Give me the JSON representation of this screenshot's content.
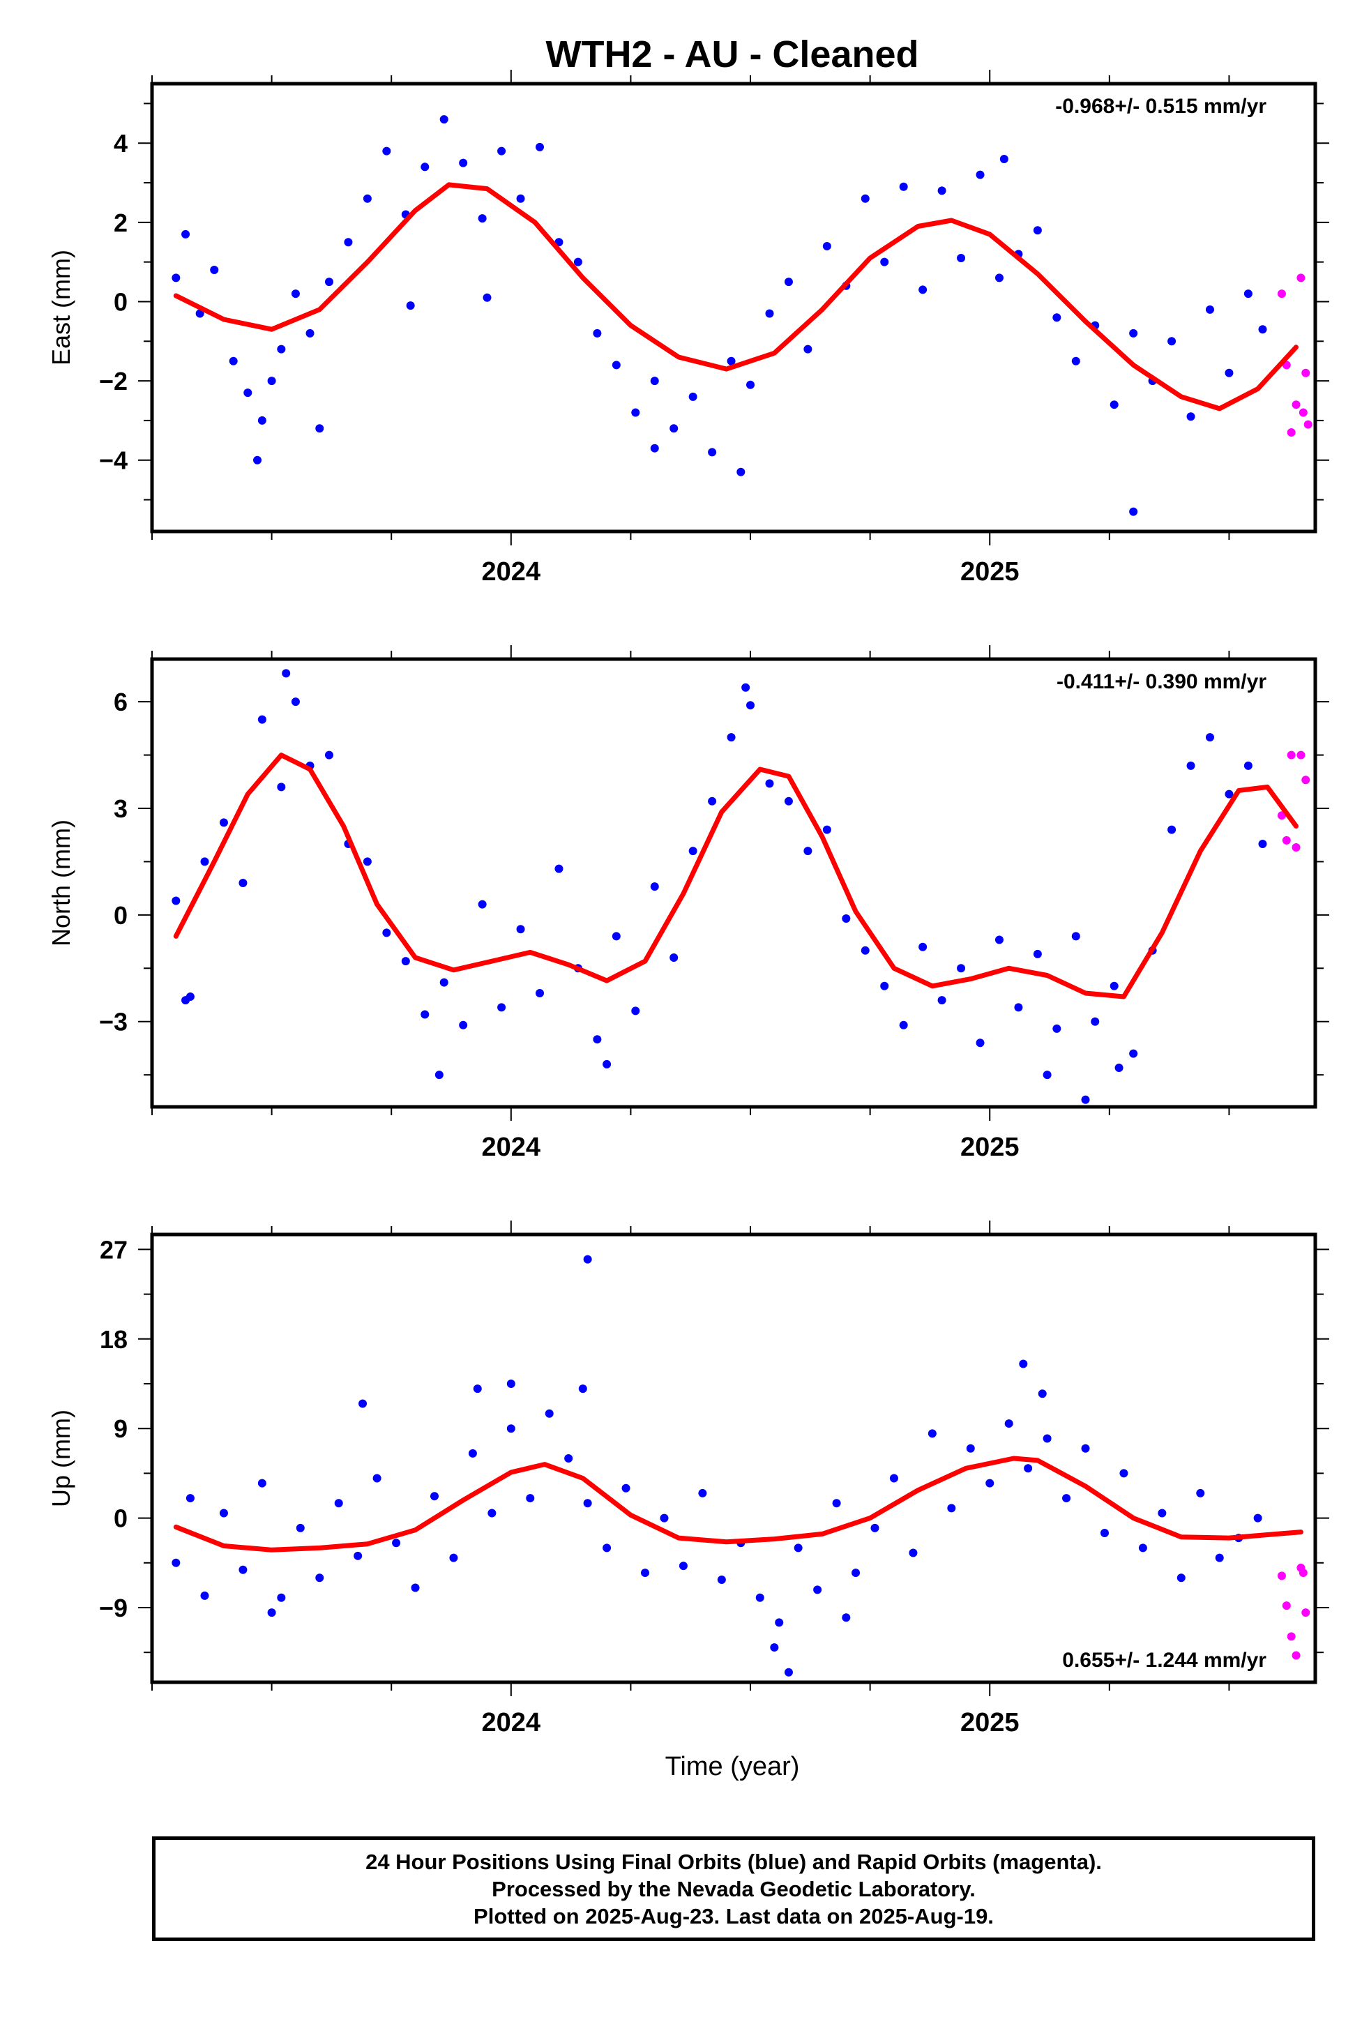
{
  "title": "WTH2  - AU - Cleaned",
  "xlabel": "Time (year)",
  "footer": {
    "line1": "24 Hour Positions Using Final Orbits (blue) and Rapid Orbits (magenta).",
    "line2": "Processed by the Nevada Geodetic Laboratory.",
    "line3": "Plotted on 2025-Aug-23. Last data on 2025-Aug-19."
  },
  "colors": {
    "final": "#0000ff",
    "rapid": "#ff00ff",
    "fit": "#ff0000"
  },
  "chart_data": [
    {
      "type": "scatter",
      "ylabel": "East (mm)",
      "rate_label": "-0.968+/- 0.515 mm/yr",
      "rate_position": "top-right",
      "xlim": [
        2023.25,
        2025.68
      ],
      "ylim": [
        -5.8,
        5.5
      ],
      "yticks": [
        -4,
        -2,
        0,
        2,
        4
      ],
      "xticks": [
        2024,
        2025
      ],
      "fit_curve": {
        "x": [
          2023.3,
          2023.4,
          2023.5,
          2023.6,
          2023.7,
          2023.8,
          2023.87,
          2023.95,
          2024.05,
          2024.15,
          2024.25,
          2024.35,
          2024.45,
          2024.55,
          2024.65,
          2024.75,
          2024.85,
          2024.92,
          2025.0,
          2025.1,
          2025.2,
          2025.3,
          2025.4,
          2025.48,
          2025.56,
          2025.64
        ],
        "y": [
          0.15,
          -0.45,
          -0.7,
          -0.2,
          1.0,
          2.3,
          2.95,
          2.85,
          2.0,
          0.6,
          -0.6,
          -1.4,
          -1.7,
          -1.3,
          -0.2,
          1.1,
          1.9,
          2.05,
          1.7,
          0.7,
          -0.5,
          -1.6,
          -2.4,
          -2.7,
          -2.2,
          -1.15
        ]
      },
      "final_points": {
        "x": [
          2023.3,
          2023.32,
          2023.35,
          2023.38,
          2023.42,
          2023.45,
          2023.48,
          2023.5,
          2023.52,
          2023.55,
          2023.58,
          2023.62,
          2023.66,
          2023.7,
          2023.74,
          2023.78,
          2023.82,
          2023.86,
          2023.9,
          2023.94,
          2023.98,
          2024.02,
          2024.06,
          2024.1,
          2024.14,
          2024.18,
          2024.22,
          2024.26,
          2024.3,
          2024.34,
          2024.38,
          2024.42,
          2024.46,
          2024.5,
          2024.54,
          2024.58,
          2024.62,
          2024.66,
          2024.7,
          2024.74,
          2024.78,
          2024.82,
          2024.86,
          2024.9,
          2024.94,
          2024.98,
          2025.02,
          2025.06,
          2025.1,
          2025.14,
          2025.18,
          2025.22,
          2025.26,
          2025.3,
          2025.34,
          2025.38,
          2025.42,
          2025.46,
          2025.5,
          2025.54,
          2025.57,
          2023.47,
          2023.79,
          2024.3,
          2024.48,
          2025.03,
          2025.3,
          2023.6,
          2023.95
        ],
        "y": [
          0.6,
          1.7,
          -0.3,
          0.8,
          -1.5,
          -2.3,
          -3.0,
          -2.0,
          -1.2,
          0.2,
          -0.8,
          0.5,
          1.5,
          2.6,
          3.8,
          2.2,
          3.4,
          4.6,
          3.5,
          2.1,
          3.8,
          2.6,
          3.9,
          1.5,
          1.0,
          -0.8,
          -1.6,
          -2.8,
          -2.0,
          -3.2,
          -2.4,
          -3.8,
          -1.5,
          -2.1,
          -0.3,
          0.5,
          -1.2,
          1.4,
          0.4,
          2.6,
          1.0,
          2.9,
          0.3,
          2.8,
          1.1,
          3.2,
          0.6,
          1.2,
          1.8,
          -0.4,
          -1.5,
          -0.6,
          -2.6,
          -0.8,
          -2.0,
          -1.0,
          -2.9,
          -0.2,
          -1.8,
          0.2,
          -0.7,
          -4.0,
          -0.1,
          -3.7,
          -4.3,
          3.6,
          -5.3,
          -3.2,
          0.1
        ]
      },
      "rapid_points": {
        "x": [
          2025.61,
          2025.62,
          2025.63,
          2025.64,
          2025.65,
          2025.655,
          2025.66,
          2025.665
        ],
        "y": [
          0.2,
          -1.6,
          -3.3,
          -2.6,
          0.6,
          -2.8,
          -1.8,
          -3.1
        ]
      }
    },
    {
      "type": "scatter",
      "ylabel": "North (mm)",
      "rate_label": "-0.411+/- 0.390 mm/yr",
      "rate_position": "top-right",
      "xlim": [
        2023.25,
        2025.68
      ],
      "ylim": [
        -5.4,
        7.2
      ],
      "yticks": [
        -3,
        0,
        3,
        6
      ],
      "xticks": [
        2024,
        2025
      ],
      "fit_curve": {
        "x": [
          2023.3,
          2023.38,
          2023.45,
          2023.52,
          2023.58,
          2023.65,
          2023.72,
          2023.8,
          2023.88,
          2023.96,
          2024.04,
          2024.12,
          2024.2,
          2024.28,
          2024.36,
          2024.44,
          2024.52,
          2024.58,
          2024.65,
          2024.72,
          2024.8,
          2024.88,
          2024.96,
          2025.04,
          2025.12,
          2025.2,
          2025.28,
          2025.36,
          2025.44,
          2025.52,
          2025.58,
          2025.64
        ],
        "y": [
          -0.6,
          1.5,
          3.4,
          4.5,
          4.1,
          2.5,
          0.3,
          -1.2,
          -1.55,
          -1.3,
          -1.05,
          -1.4,
          -1.85,
          -1.3,
          0.6,
          2.9,
          4.1,
          3.9,
          2.2,
          0.1,
          -1.5,
          -2.0,
          -1.8,
          -1.5,
          -1.7,
          -2.2,
          -2.3,
          -0.5,
          1.8,
          3.5,
          3.6,
          2.5
        ]
      },
      "final_points": {
        "x": [
          2023.3,
          2023.33,
          2023.36,
          2023.4,
          2023.44,
          2023.48,
          2023.52,
          2023.55,
          2023.58,
          2023.62,
          2023.66,
          2023.7,
          2023.74,
          2023.78,
          2023.82,
          2023.86,
          2023.9,
          2023.94,
          2023.98,
          2024.02,
          2024.06,
          2024.1,
          2024.14,
          2024.18,
          2024.22,
          2024.26,
          2024.3,
          2024.34,
          2024.38,
          2024.42,
          2024.46,
          2024.5,
          2024.54,
          2024.58,
          2024.62,
          2024.66,
          2024.7,
          2024.74,
          2024.78,
          2024.82,
          2024.86,
          2024.9,
          2024.94,
          2024.98,
          2025.02,
          2025.06,
          2025.1,
          2025.14,
          2025.18,
          2025.22,
          2025.26,
          2025.3,
          2025.34,
          2025.38,
          2025.42,
          2025.46,
          2025.5,
          2025.54,
          2025.57,
          2023.32,
          2023.53,
          2023.85,
          2024.2,
          2024.49,
          2025.12,
          2025.2,
          2025.27
        ],
        "y": [
          0.4,
          -2.3,
          1.5,
          2.6,
          0.9,
          5.5,
          3.6,
          6.0,
          4.2,
          4.5,
          2.0,
          1.5,
          -0.5,
          -1.3,
          -2.8,
          -1.9,
          -3.1,
          0.3,
          -2.6,
          -0.4,
          -2.2,
          1.3,
          -1.5,
          -3.5,
          -0.6,
          -2.7,
          0.8,
          -1.2,
          1.8,
          3.2,
          5.0,
          5.9,
          3.7,
          3.2,
          1.8,
          2.4,
          -0.1,
          -1.0,
          -2.0,
          -3.1,
          -0.9,
          -2.4,
          -1.5,
          -3.6,
          -0.7,
          -2.6,
          -1.1,
          -3.2,
          -0.6,
          -3.0,
          -2.0,
          -3.9,
          -1.0,
          2.4,
          4.2,
          5.0,
          3.4,
          4.2,
          2.0,
          -2.4,
          6.8,
          -4.5,
          -4.2,
          6.4,
          -4.5,
          -5.2,
          -4.3
        ]
      },
      "rapid_points": {
        "x": [
          2025.61,
          2025.62,
          2025.63,
          2025.64,
          2025.65,
          2025.66
        ],
        "y": [
          2.8,
          2.1,
          4.5,
          1.9,
          4.5,
          3.8
        ]
      }
    },
    {
      "type": "scatter",
      "ylabel": "Up (mm)",
      "rate_label": "0.655+/- 1.244 mm/yr",
      "rate_position": "bottom-right",
      "xlim": [
        2023.25,
        2025.68
      ],
      "ylim": [
        -16.5,
        28.5
      ],
      "yticks": [
        -9,
        0,
        9,
        18,
        27
      ],
      "xticks": [
        2024,
        2025
      ],
      "fit_curve": {
        "x": [
          2023.3,
          2023.4,
          2023.5,
          2023.6,
          2023.7,
          2023.8,
          2023.9,
          2024.0,
          2024.07,
          2024.15,
          2024.25,
          2024.35,
          2024.45,
          2024.55,
          2024.65,
          2024.75,
          2024.85,
          2024.95,
          2025.05,
          2025.1,
          2025.2,
          2025.3,
          2025.4,
          2025.5,
          2025.6,
          2025.65
        ],
        "y": [
          -0.9,
          -2.8,
          -3.2,
          -3.0,
          -2.6,
          -1.2,
          1.8,
          4.6,
          5.4,
          4.0,
          0.3,
          -2.0,
          -2.4,
          -2.1,
          -1.6,
          0.0,
          2.8,
          5.0,
          6.0,
          5.8,
          3.2,
          0.0,
          -1.9,
          -2.0,
          -1.6,
          -1.4
        ]
      },
      "final_points": {
        "x": [
          2023.3,
          2023.33,
          2023.36,
          2023.4,
          2023.44,
          2023.48,
          2023.52,
          2023.56,
          2023.6,
          2023.64,
          2023.68,
          2023.72,
          2023.76,
          2023.8,
          2023.84,
          2023.88,
          2023.92,
          2023.96,
          2024.0,
          2024.04,
          2024.08,
          2024.12,
          2024.16,
          2024.2,
          2024.24,
          2024.28,
          2024.32,
          2024.36,
          2024.4,
          2024.44,
          2024.48,
          2024.52,
          2024.56,
          2024.6,
          2024.64,
          2024.68,
          2024.72,
          2024.76,
          2024.8,
          2024.84,
          2024.88,
          2024.92,
          2024.96,
          2025.0,
          2025.04,
          2025.08,
          2025.12,
          2025.16,
          2025.2,
          2025.24,
          2025.28,
          2025.32,
          2025.36,
          2025.4,
          2025.44,
          2025.48,
          2025.52,
          2025.56,
          2023.69,
          2023.93,
          2024.0,
          2024.16,
          2024.15,
          2024.55,
          2024.58,
          2025.07,
          2025.11,
          2024.7,
          2023.5
        ],
        "y": [
          -4.5,
          2.0,
          -7.8,
          0.5,
          -5.2,
          3.5,
          -8.0,
          -1.0,
          -6.0,
          1.5,
          -3.8,
          4.0,
          -2.5,
          -7.0,
          2.2,
          -4.0,
          6.5,
          0.5,
          9.0,
          2.0,
          10.5,
          6.0,
          1.5,
          -3.0,
          3.0,
          -5.5,
          0.0,
          -4.8,
          2.5,
          -6.2,
          -2.5,
          -8.0,
          -10.5,
          -3.0,
          -7.2,
          1.5,
          -5.5,
          -1.0,
          4.0,
          -3.5,
          8.5,
          1.0,
          7.0,
          3.5,
          9.5,
          5.0,
          8.0,
          2.0,
          7.0,
          -1.5,
          4.5,
          -3.0,
          0.5,
          -6.0,
          2.5,
          -4.0,
          -2.0,
          0.0,
          11.5,
          13.0,
          13.5,
          26.0,
          13.0,
          -13.0,
          -15.5,
          15.5,
          12.5,
          -10.0,
          -9.5
        ]
      },
      "rapid_points": {
        "x": [
          2025.61,
          2025.62,
          2025.63,
          2025.64,
          2025.65,
          2025.655,
          2025.66
        ],
        "y": [
          -5.8,
          -8.8,
          -11.9,
          -13.8,
          -5.0,
          -5.5,
          -9.5
        ]
      }
    }
  ]
}
